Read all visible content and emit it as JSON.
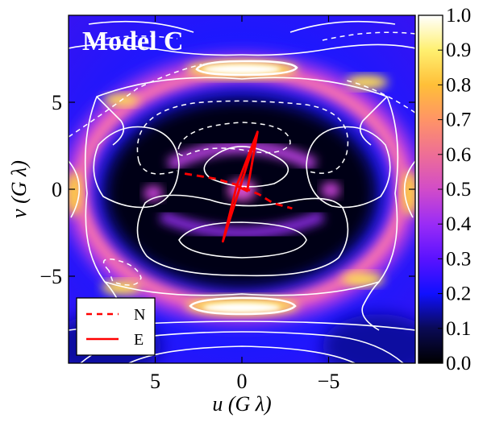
{
  "chart_data": {
    "type": "heatmap",
    "title": "Model C",
    "xlabel": "u (G λ)",
    "ylabel": "v (G λ)",
    "xlim": [
      10,
      -10
    ],
    "ylim": [
      -10,
      10
    ],
    "x_ticks": [
      5,
      0,
      -5
    ],
    "x_tick_labels": [
      "5",
      "0",
      "−5"
    ],
    "y_ticks": [
      5,
      0,
      -5
    ],
    "y_tick_labels": [
      "5",
      "0",
      "−5"
    ],
    "grid": false,
    "colorbar": {
      "range": [
        0.0,
        1.0
      ],
      "ticks": [
        0.0,
        0.1,
        0.2,
        0.3,
        0.4,
        0.5,
        0.6,
        0.7,
        0.8,
        0.9,
        1.0
      ],
      "tick_labels": [
        "0.0",
        "0.1",
        "0.2",
        "0.3",
        "0.4",
        "0.5",
        "0.6",
        "0.7",
        "0.8",
        "0.9",
        "1.0"
      ],
      "colormap": "gnuplot2-like: black to blue to magenta to yellow to white"
    },
    "legend": {
      "placement": "lower-left",
      "entries": [
        {
          "label": "N",
          "style": "dashed",
          "color": "#ff0000"
        },
        {
          "label": "E",
          "style": "solid",
          "color": "#ff0000"
        }
      ]
    },
    "series": [
      {
        "name": "N",
        "style": "dashed",
        "color": "#ff0000",
        "x": [
          3.3,
          1.5,
          0.3,
          -1.0,
          -1.8,
          -2.9
        ],
        "y": [
          0.9,
          0.6,
          0.25,
          -0.3,
          -0.8,
          -1.1
        ]
      },
      {
        "name": "E",
        "style": "solid",
        "color": "#ff0000",
        "x": [
          -0.9,
          0.3,
          1.1,
          -0.9,
          -0.3,
          0.3
        ],
        "y": [
          3.3,
          0.2,
          -3.0,
          3.3,
          -0.1,
          0.2
        ]
      }
    ]
  },
  "colors": {
    "series_red": "#ff0000",
    "contours": "#ffffff",
    "background": "#ffffff"
  }
}
